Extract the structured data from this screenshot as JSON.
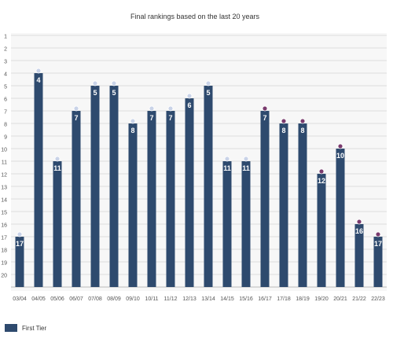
{
  "chart_data": {
    "type": "bar",
    "title": "Final rankings based on the last 20 years",
    "xlabel": "",
    "ylabel": "",
    "categories": [
      "03/04",
      "04/05",
      "05/06",
      "06/07",
      "07/08",
      "08/09",
      "09/10",
      "10/11",
      "11/12",
      "12/13",
      "13/14",
      "14/15",
      "15/16",
      "16/17",
      "17/18",
      "18/19",
      "19/20",
      "20/21",
      "21/22",
      "22/23"
    ],
    "series": [
      {
        "name": "First Tier",
        "color": "#2e4a6e",
        "values": [
          17,
          4,
          11,
          7,
          5,
          5,
          8,
          7,
          7,
          6,
          5,
          11,
          11,
          7,
          8,
          8,
          12,
          10,
          16,
          17
        ]
      }
    ],
    "y_ticks": [
      "1",
      "2",
      "3",
      "4",
      "5",
      "6",
      "7",
      "8",
      "9",
      "10",
      "11",
      "12",
      "13",
      "14",
      "15",
      "16",
      "17",
      "18",
      "19",
      "20"
    ],
    "ylim": [
      1,
      20
    ],
    "y_inverted": true,
    "grid": true,
    "legend_position": "bottom-left"
  }
}
